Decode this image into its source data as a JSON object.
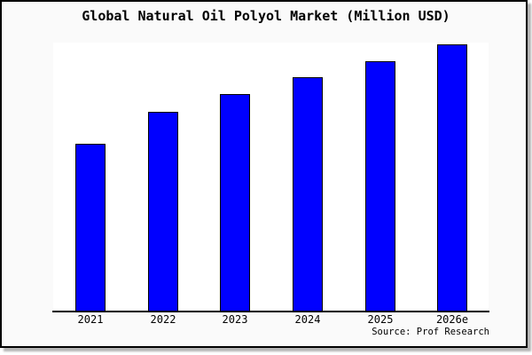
{
  "chart_data": {
    "type": "bar",
    "title": "Global Natural Oil Polyol Market (Million USD)",
    "categories": [
      "2021",
      "2022",
      "2023",
      "2024",
      "2025",
      "2026e"
    ],
    "values": [
      189,
      225,
      245,
      264,
      282,
      301
    ],
    "value_note": "no y-axis, gridlines or data labels are shown; values are relative bar heights read from the image in pixels",
    "xlabel": "",
    "ylabel": "",
    "legend": null,
    "grid": false,
    "colors": {
      "bar_fill": "#0000ff",
      "bar_edge": "#000000",
      "plot_bg": "#ffffff",
      "figure_bg": "#fafafa",
      "frame_border": "#000000",
      "text": "#000000"
    }
  },
  "footer": {
    "source": "Source: Prof Research"
  }
}
